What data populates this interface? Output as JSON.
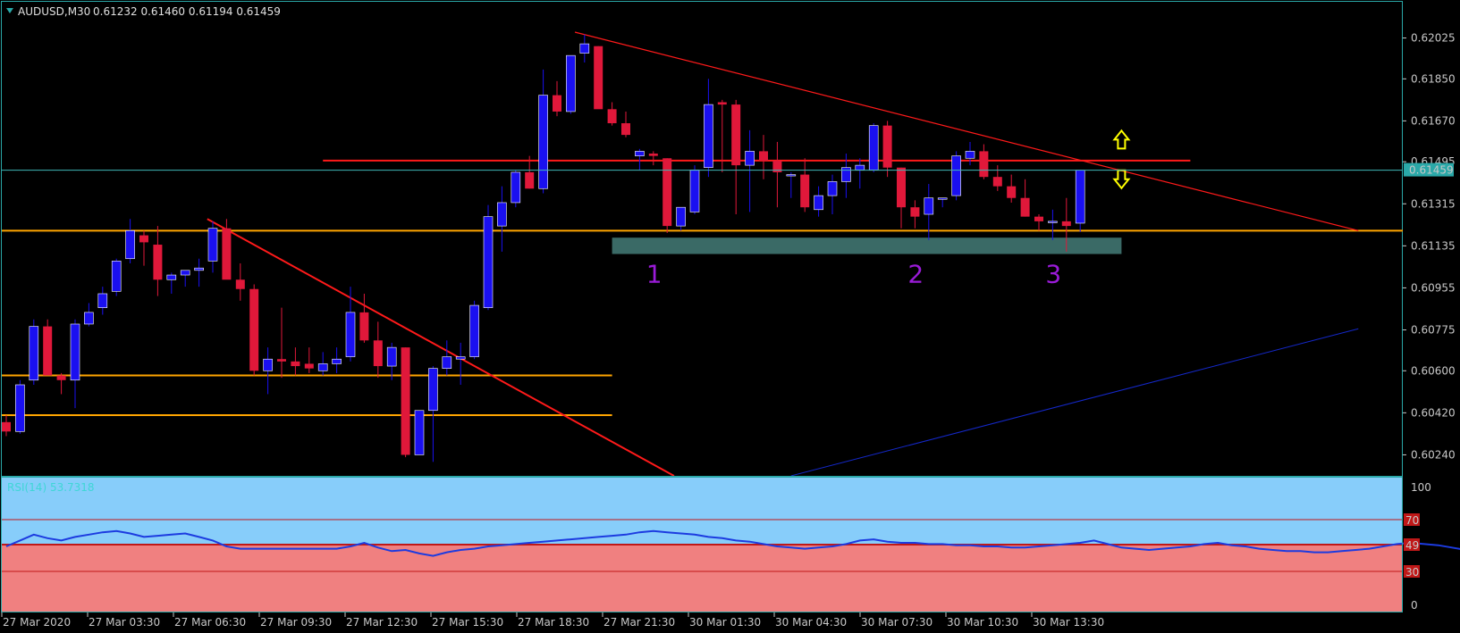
{
  "header": {
    "symbol": "AUDUSD,M30",
    "ohlc": "0.61232 0.61460 0.61194 0.61459",
    "menu_icon": "triangle-down-icon"
  },
  "current_price": "0.61459",
  "colors": {
    "bull": "#1a10f0",
    "bear": "#e0183a",
    "grid": "#2aa8a8",
    "trend_red": "#ff1a1a",
    "level_orange": "#ffa500",
    "support_zone": "#3a6a66",
    "long_trend_blue": "#1428c8",
    "rsi_line": "#1c3be0",
    "rsi_upper_bg": "#87cdfa",
    "rsi_lower_bg": "#f08080",
    "arrow_yellow": "#ffff00",
    "point_label": "#9a1bd8",
    "price_tag_bg": "#2aa8a8"
  },
  "price_axis_labels": [
    "0.62025",
    "0.61850",
    "0.61670",
    "0.61495",
    "0.61315",
    "0.61135",
    "0.60955",
    "0.60775",
    "0.60600",
    "0.60420",
    "0.60240"
  ],
  "time_axis_labels": [
    "27 Mar 2020",
    "27 Mar 03:30",
    "27 Mar 06:30",
    "27 Mar 09:30",
    "27 Mar 12:30",
    "27 Mar 15:30",
    "27 Mar 18:30",
    "27 Mar 21:30",
    "30 Mar 01:30",
    "30 Mar 04:30",
    "30 Mar 07:30",
    "30 Mar 10:30",
    "30 Mar 13:30"
  ],
  "point_labels": [
    "1",
    "2",
    "3"
  ],
  "rsi": {
    "title": "RSI(14) 53.7318",
    "levels": [
      "100",
      "70",
      "49",
      "30",
      "0"
    ],
    "values": [
      50,
      55,
      60,
      57,
      55,
      58,
      60,
      62,
      63,
      61,
      58,
      59,
      60,
      61,
      58,
      55,
      50,
      48,
      48,
      48,
      48,
      48,
      48,
      48,
      48,
      50,
      53,
      49,
      46,
      47,
      44,
      42,
      45,
      47,
      48,
      50,
      51,
      52,
      53,
      54,
      55,
      56,
      57,
      58,
      59,
      60,
      62,
      63,
      62,
      61,
      60,
      58,
      57,
      55,
      54,
      52,
      50,
      49,
      48,
      49,
      50,
      52,
      55,
      56,
      54,
      53,
      53,
      52,
      52,
      51,
      51,
      50,
      50,
      49,
      49,
      50,
      51,
      52,
      53,
      55,
      52,
      49,
      48,
      47,
      48,
      49,
      50,
      52,
      53,
      51,
      50,
      48,
      47,
      46,
      46,
      45,
      45,
      46,
      47,
      48,
      50,
      52,
      53,
      52,
      51,
      49,
      47,
      46,
      47,
      48,
      49,
      50,
      52,
      53,
      52,
      51,
      50,
      49,
      48,
      47,
      46,
      46,
      45,
      46,
      47,
      52
    ]
  },
  "chart_data": {
    "type": "candlestick",
    "title": "AUDUSD,M30",
    "ylim": [
      0.6015,
      0.6218
    ],
    "x": [
      "27 Mar 2020",
      "27 Mar 03:30",
      "27 Mar 06:30",
      "27 Mar 09:30",
      "27 Mar 12:30",
      "27 Mar 15:30",
      "27 Mar 18:30",
      "27 Mar 21:30",
      "30 Mar 01:30",
      "30 Mar 04:30",
      "30 Mar 07:30",
      "30 Mar 10:30",
      "30 Mar 13:30"
    ],
    "candles": [
      {
        "o": 0.6038,
        "h": 0.6041,
        "l": 0.6032,
        "c": 0.6034
      },
      {
        "o": 0.6034,
        "h": 0.6056,
        "l": 0.6033,
        "c": 0.6054
      },
      {
        "o": 0.6056,
        "h": 0.6082,
        "l": 0.6054,
        "c": 0.6079
      },
      {
        "o": 0.6079,
        "h": 0.6082,
        "l": 0.6058,
        "c": 0.6058
      },
      {
        "o": 0.6058,
        "h": 0.6059,
        "l": 0.605,
        "c": 0.6056
      },
      {
        "o": 0.6056,
        "h": 0.6082,
        "l": 0.6044,
        "c": 0.608
      },
      {
        "o": 0.608,
        "h": 0.6089,
        "l": 0.6079,
        "c": 0.6085
      },
      {
        "o": 0.6087,
        "h": 0.6096,
        "l": 0.6084,
        "c": 0.6093
      },
      {
        "o": 0.6094,
        "h": 0.6108,
        "l": 0.6092,
        "c": 0.6107
      },
      {
        "o": 0.6108,
        "h": 0.6125,
        "l": 0.6106,
        "c": 0.612
      },
      {
        "o": 0.6118,
        "h": 0.612,
        "l": 0.6105,
        "c": 0.6115
      },
      {
        "o": 0.6114,
        "h": 0.6122,
        "l": 0.6092,
        "c": 0.6099
      },
      {
        "o": 0.6099,
        "h": 0.6102,
        "l": 0.6093,
        "c": 0.6101
      },
      {
        "o": 0.6101,
        "h": 0.6103,
        "l": 0.6096,
        "c": 0.6103
      },
      {
        "o": 0.6103,
        "h": 0.6108,
        "l": 0.6096,
        "c": 0.6104
      },
      {
        "o": 0.6107,
        "h": 0.6124,
        "l": 0.6102,
        "c": 0.6121
      },
      {
        "o": 0.6121,
        "h": 0.6125,
        "l": 0.61,
        "c": 0.6099
      },
      {
        "o": 0.6099,
        "h": 0.6106,
        "l": 0.609,
        "c": 0.6095
      },
      {
        "o": 0.6095,
        "h": 0.6097,
        "l": 0.6058,
        "c": 0.606
      },
      {
        "o": 0.606,
        "h": 0.607,
        "l": 0.605,
        "c": 0.6065
      },
      {
        "o": 0.6065,
        "h": 0.6087,
        "l": 0.6057,
        "c": 0.6064
      },
      {
        "o": 0.6064,
        "h": 0.607,
        "l": 0.6058,
        "c": 0.6062
      },
      {
        "o": 0.6063,
        "h": 0.607,
        "l": 0.6059,
        "c": 0.6061
      },
      {
        "o": 0.606,
        "h": 0.6068,
        "l": 0.6058,
        "c": 0.6063
      },
      {
        "o": 0.6063,
        "h": 0.607,
        "l": 0.6059,
        "c": 0.6065
      },
      {
        "o": 0.6066,
        "h": 0.6096,
        "l": 0.6064,
        "c": 0.6085
      },
      {
        "o": 0.6085,
        "h": 0.6093,
        "l": 0.6072,
        "c": 0.6073
      },
      {
        "o": 0.6073,
        "h": 0.6081,
        "l": 0.6057,
        "c": 0.6062
      },
      {
        "o": 0.6062,
        "h": 0.6072,
        "l": 0.6056,
        "c": 0.607
      },
      {
        "o": 0.607,
        "h": 0.607,
        "l": 0.6023,
        "c": 0.6024
      },
      {
        "o": 0.6024,
        "h": 0.6043,
        "l": 0.6024,
        "c": 0.6043
      },
      {
        "o": 0.6043,
        "h": 0.6062,
        "l": 0.6021,
        "c": 0.6061
      },
      {
        "o": 0.6061,
        "h": 0.6073,
        "l": 0.6058,
        "c": 0.6066
      },
      {
        "o": 0.6065,
        "h": 0.6072,
        "l": 0.6054,
        "c": 0.6066
      },
      {
        "o": 0.6066,
        "h": 0.609,
        "l": 0.6065,
        "c": 0.6088
      },
      {
        "o": 0.6087,
        "h": 0.6131,
        "l": 0.6086,
        "c": 0.6126
      },
      {
        "o": 0.6122,
        "h": 0.6139,
        "l": 0.6111,
        "c": 0.6132
      },
      {
        "o": 0.6132,
        "h": 0.6146,
        "l": 0.613,
        "c": 0.6145
      },
      {
        "o": 0.6145,
        "h": 0.6152,
        "l": 0.6138,
        "c": 0.6138
      },
      {
        "o": 0.6138,
        "h": 0.6189,
        "l": 0.6136,
        "c": 0.6178
      },
      {
        "o": 0.6178,
        "h": 0.6184,
        "l": 0.6169,
        "c": 0.6171
      },
      {
        "o": 0.6171,
        "h": 0.6195,
        "l": 0.617,
        "c": 0.6195
      },
      {
        "o": 0.6196,
        "h": 0.6204,
        "l": 0.6192,
        "c": 0.62
      },
      {
        "o": 0.6199,
        "h": 0.6199,
        "l": 0.6174,
        "c": 0.6172
      },
      {
        "o": 0.6172,
        "h": 0.6175,
        "l": 0.6165,
        "c": 0.6166
      },
      {
        "o": 0.6166,
        "h": 0.6171,
        "l": 0.616,
        "c": 0.6161
      },
      {
        "o": 0.6152,
        "h": 0.6155,
        "l": 0.6146,
        "c": 0.6154
      },
      {
        "o": 0.6153,
        "h": 0.6154,
        "l": 0.6148,
        "c": 0.6152
      },
      {
        "o": 0.6151,
        "h": 0.6151,
        "l": 0.6119,
        "c": 0.6122
      },
      {
        "o": 0.6122,
        "h": 0.613,
        "l": 0.612,
        "c": 0.613
      },
      {
        "o": 0.6128,
        "h": 0.6148,
        "l": 0.6127,
        "c": 0.6146
      },
      {
        "o": 0.6147,
        "h": 0.6185,
        "l": 0.6143,
        "c": 0.6174
      },
      {
        "o": 0.6175,
        "h": 0.6176,
        "l": 0.6145,
        "c": 0.6174
      },
      {
        "o": 0.6174,
        "h": 0.6176,
        "l": 0.6127,
        "c": 0.6148
      },
      {
        "o": 0.6148,
        "h": 0.6163,
        "l": 0.6128,
        "c": 0.6154
      },
      {
        "o": 0.6154,
        "h": 0.6161,
        "l": 0.6142,
        "c": 0.615
      },
      {
        "o": 0.615,
        "h": 0.6158,
        "l": 0.613,
        "c": 0.6145
      },
      {
        "o": 0.6144,
        "h": 0.6145,
        "l": 0.6134,
        "c": 0.6144
      },
      {
        "o": 0.6144,
        "h": 0.6151,
        "l": 0.6128,
        "c": 0.613
      },
      {
        "o": 0.6129,
        "h": 0.6139,
        "l": 0.6126,
        "c": 0.6135
      },
      {
        "o": 0.6135,
        "h": 0.6144,
        "l": 0.6127,
        "c": 0.6141
      },
      {
        "o": 0.6141,
        "h": 0.6153,
        "l": 0.6134,
        "c": 0.6147
      },
      {
        "o": 0.6146,
        "h": 0.6151,
        "l": 0.6138,
        "c": 0.6148
      },
      {
        "o": 0.6146,
        "h": 0.6166,
        "l": 0.6145,
        "c": 0.6165
      },
      {
        "o": 0.6165,
        "h": 0.6167,
        "l": 0.6143,
        "c": 0.6147
      },
      {
        "o": 0.6147,
        "h": 0.6147,
        "l": 0.6121,
        "c": 0.613
      },
      {
        "o": 0.613,
        "h": 0.6133,
        "l": 0.6121,
        "c": 0.6126
      },
      {
        "o": 0.6127,
        "h": 0.614,
        "l": 0.6116,
        "c": 0.6134
      },
      {
        "o": 0.6134,
        "h": 0.6134,
        "l": 0.613,
        "c": 0.6134
      },
      {
        "o": 0.6135,
        "h": 0.6154,
        "l": 0.6133,
        "c": 0.6152
      },
      {
        "o": 0.6151,
        "h": 0.6158,
        "l": 0.6148,
        "c": 0.6154
      },
      {
        "o": 0.6154,
        "h": 0.6157,
        "l": 0.6142,
        "c": 0.6143
      },
      {
        "o": 0.6143,
        "h": 0.6148,
        "l": 0.6137,
        "c": 0.6139
      },
      {
        "o": 0.6139,
        "h": 0.6144,
        "l": 0.6132,
        "c": 0.6134
      },
      {
        "o": 0.6134,
        "h": 0.6142,
        "l": 0.6126,
        "c": 0.6126
      },
      {
        "o": 0.6126,
        "h": 0.6127,
        "l": 0.612,
        "c": 0.6124
      },
      {
        "o": 0.6124,
        "h": 0.6129,
        "l": 0.6116,
        "c": 0.6124
      },
      {
        "o": 0.6124,
        "h": 0.6134,
        "l": 0.6111,
        "c": 0.6122
      },
      {
        "o": 0.61232,
        "h": 0.6146,
        "l": 0.61194,
        "c": 0.61459
      }
    ],
    "horizontal_lines": [
      {
        "price": 0.615,
        "color": "#ff1a1a",
        "from_candle": 23,
        "to_candle": 86
      },
      {
        "price": 0.612,
        "color": "#ffa500",
        "from_candle": 0,
        "to_candle": null
      },
      {
        "price": 0.6058,
        "color": "#ffa500",
        "from_candle": 0,
        "to_candle": 44
      },
      {
        "price": 0.6041,
        "color": "#ffa500",
        "from_candle": 0,
        "to_candle": 44
      }
    ],
    "support_zone": {
      "top": 0.6117,
      "bottom": 0.611,
      "from_candle": 44,
      "to_candle": 81
    },
    "trendlines": [
      {
        "from": [
          14.6,
          0.6125
        ],
        "to": [
          48.5,
          0.6015
        ],
        "color": "#ff1a1a"
      },
      {
        "from": [
          41.3,
          0.6205
        ],
        "to": [
          98.2,
          0.612
        ],
        "color": "#ff1a1a"
      },
      {
        "from": [
          57.0,
          0.6015
        ],
        "to": [
          98.2,
          0.6078
        ],
        "color": "#1428c8"
      }
    ],
    "points": [
      {
        "label": "1",
        "candle": 47
      },
      {
        "label": "2",
        "candle": 66
      },
      {
        "label": "3",
        "candle": 76
      }
    ],
    "arrows": {
      "candle": 81,
      "up_price": 0.6159,
      "down_price": 0.6142
    }
  }
}
